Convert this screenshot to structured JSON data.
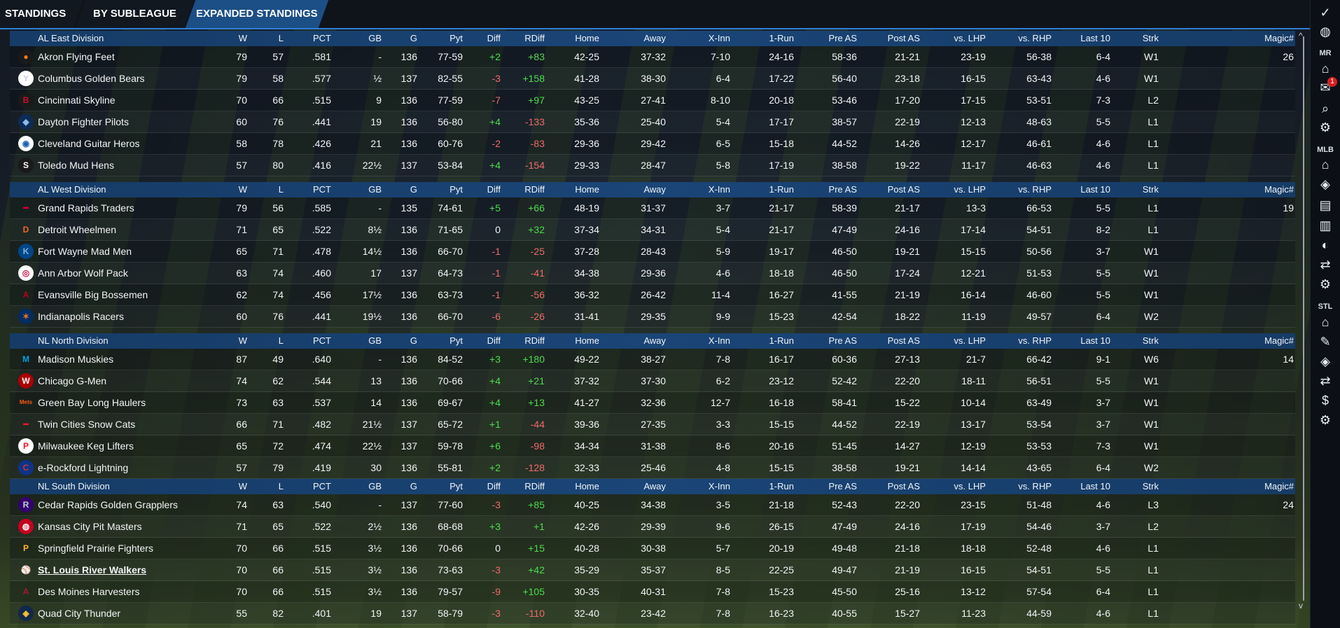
{
  "tabs": [
    {
      "label": "STANDINGS"
    },
    {
      "label": "BY SUBLEAGUE"
    },
    {
      "label": "EXPANDED STANDINGS"
    }
  ],
  "columns": [
    "W",
    "L",
    "PCT",
    "GB",
    "G",
    "Pyt",
    "Diff",
    "RDiff",
    "Home",
    "Away",
    "X-Inn",
    "1-Run",
    "Pre AS",
    "Post AS",
    "vs. LHP",
    "vs. RHP",
    "Last 10",
    "Strk",
    "Magic#"
  ],
  "divisions": [
    {
      "name": "AL East Division",
      "teams": [
        {
          "team": "Akron  Flying Feet",
          "w": "79",
          "l": "57",
          "pct": ".581",
          "gb": "-",
          "g": "136",
          "pyt": "77-59",
          "diff": "+2",
          "rdiff": "+83",
          "home": "42-25",
          "away": "37-32",
          "xinn": "7-10",
          "onerun": "24-16",
          "preas": "58-36",
          "postas": "21-21",
          "vlhp": "23-19",
          "vrhp": "56-38",
          "last10": "6-4",
          "strk": "W1",
          "magic": "26"
        },
        {
          "team": "Columbus Golden Bears",
          "w": "79",
          "l": "58",
          "pct": ".577",
          "gb": "½",
          "g": "137",
          "pyt": "82-55",
          "diff": "-3",
          "rdiff": "+158",
          "home": "41-28",
          "away": "38-30",
          "xinn": "6-4",
          "onerun": "17-22",
          "preas": "56-40",
          "postas": "23-18",
          "vlhp": "16-15",
          "vrhp": "63-43",
          "last10": "4-6",
          "strk": "W1",
          "magic": ""
        },
        {
          "team": "Cincinnati Skyline",
          "w": "70",
          "l": "66",
          "pct": ".515",
          "gb": "9",
          "g": "136",
          "pyt": "77-59",
          "diff": "-7",
          "rdiff": "+97",
          "home": "43-25",
          "away": "27-41",
          "xinn": "8-10",
          "onerun": "20-18",
          "preas": "53-46",
          "postas": "17-20",
          "vlhp": "17-15",
          "vrhp": "53-51",
          "last10": "7-3",
          "strk": "L2",
          "magic": ""
        },
        {
          "team": "Dayton Fighter Pilots",
          "w": "60",
          "l": "76",
          "pct": ".441",
          "gb": "19",
          "g": "136",
          "pyt": "56-80",
          "diff": "+4",
          "rdiff": "-133",
          "home": "35-36",
          "away": "25-40",
          "xinn": "5-4",
          "onerun": "17-17",
          "preas": "38-57",
          "postas": "22-19",
          "vlhp": "12-13",
          "vrhp": "48-63",
          "last10": "5-5",
          "strk": "L1",
          "magic": ""
        },
        {
          "team": "Cleveland Guitar Heros",
          "w": "58",
          "l": "78",
          "pct": ".426",
          "gb": "21",
          "g": "136",
          "pyt": "60-76",
          "diff": "-2",
          "rdiff": "-83",
          "home": "29-36",
          "away": "29-42",
          "xinn": "6-5",
          "onerun": "15-18",
          "preas": "44-52",
          "postas": "14-26",
          "vlhp": "12-17",
          "vrhp": "46-61",
          "last10": "4-6",
          "strk": "L1",
          "magic": ""
        },
        {
          "team": "Toledo  Mud Hens",
          "w": "57",
          "l": "80",
          "pct": ".416",
          "gb": "22½",
          "g": "137",
          "pyt": "53-84",
          "diff": "+4",
          "rdiff": "-154",
          "home": "29-33",
          "away": "28-47",
          "xinn": "5-8",
          "onerun": "17-19",
          "preas": "38-58",
          "postas": "19-22",
          "vlhp": "11-17",
          "vrhp": "46-63",
          "last10": "4-6",
          "strk": "L1",
          "magic": ""
        }
      ]
    },
    {
      "name": "AL West Division",
      "teams": [
        {
          "team": "Grand Rapids Traders",
          "w": "79",
          "l": "56",
          "pct": ".585",
          "gb": "-",
          "g": "135",
          "pyt": "74-61",
          "diff": "+5",
          "rdiff": "+66",
          "home": "48-19",
          "away": "31-37",
          "xinn": "3-7",
          "onerun": "21-17",
          "preas": "58-39",
          "postas": "21-17",
          "vlhp": "13-3",
          "vrhp": "66-53",
          "last10": "5-5",
          "strk": "L1",
          "magic": "19"
        },
        {
          "team": "Detroit Wheelmen",
          "w": "71",
          "l": "65",
          "pct": ".522",
          "gb": "8½",
          "g": "136",
          "pyt": "71-65",
          "diff": "0",
          "rdiff": "+32",
          "home": "37-34",
          "away": "34-31",
          "xinn": "5-4",
          "onerun": "21-17",
          "preas": "47-49",
          "postas": "24-16",
          "vlhp": "17-14",
          "vrhp": "54-51",
          "last10": "8-2",
          "strk": "L1",
          "magic": ""
        },
        {
          "team": "Fort Wayne Mad Men",
          "w": "65",
          "l": "71",
          "pct": ".478",
          "gb": "14½",
          "g": "136",
          "pyt": "66-70",
          "diff": "-1",
          "rdiff": "-25",
          "home": "37-28",
          "away": "28-43",
          "xinn": "5-9",
          "onerun": "19-17",
          "preas": "46-50",
          "postas": "19-21",
          "vlhp": "15-15",
          "vrhp": "50-56",
          "last10": "3-7",
          "strk": "W1",
          "magic": ""
        },
        {
          "team": "Ann Arbor Wolf Pack",
          "w": "63",
          "l": "74",
          "pct": ".460",
          "gb": "17",
          "g": "137",
          "pyt": "64-73",
          "diff": "-1",
          "rdiff": "-41",
          "home": "34-38",
          "away": "29-36",
          "xinn": "4-6",
          "onerun": "18-18",
          "preas": "46-50",
          "postas": "17-24",
          "vlhp": "12-21",
          "vrhp": "51-53",
          "last10": "5-5",
          "strk": "W1",
          "magic": ""
        },
        {
          "team": "Evansville Big Bossemen",
          "w": "62",
          "l": "74",
          "pct": ".456",
          "gb": "17½",
          "g": "136",
          "pyt": "63-73",
          "diff": "-1",
          "rdiff": "-56",
          "home": "36-32",
          "away": "26-42",
          "xinn": "11-4",
          "onerun": "16-27",
          "preas": "41-55",
          "postas": "21-19",
          "vlhp": "16-14",
          "vrhp": "46-60",
          "last10": "5-5",
          "strk": "W1",
          "magic": ""
        },
        {
          "team": "Indianapolis Racers",
          "w": "60",
          "l": "76",
          "pct": ".441",
          "gb": "19½",
          "g": "136",
          "pyt": "66-70",
          "diff": "-6",
          "rdiff": "-26",
          "home": "31-41",
          "away": "29-35",
          "xinn": "9-9",
          "onerun": "15-23",
          "preas": "42-54",
          "postas": "18-22",
          "vlhp": "11-19",
          "vrhp": "49-57",
          "last10": "6-4",
          "strk": "W2",
          "magic": ""
        }
      ]
    },
    {
      "name": "NL North Division",
      "teams": [
        {
          "team": "Madison Muskies",
          "w": "87",
          "l": "49",
          "pct": ".640",
          "gb": "-",
          "g": "136",
          "pyt": "84-52",
          "diff": "+3",
          "rdiff": "+180",
          "home": "49-22",
          "away": "38-27",
          "xinn": "7-8",
          "onerun": "16-17",
          "preas": "60-36",
          "postas": "27-13",
          "vlhp": "21-7",
          "vrhp": "66-42",
          "last10": "9-1",
          "strk": "W6",
          "magic": "14"
        },
        {
          "team": "Chicago G-Men",
          "w": "74",
          "l": "62",
          "pct": ".544",
          "gb": "13",
          "g": "136",
          "pyt": "70-66",
          "diff": "+4",
          "rdiff": "+21",
          "home": "37-32",
          "away": "37-30",
          "xinn": "6-2",
          "onerun": "23-12",
          "preas": "52-42",
          "postas": "22-20",
          "vlhp": "18-11",
          "vrhp": "56-51",
          "last10": "5-5",
          "strk": "W1",
          "magic": ""
        },
        {
          "team": "Green Bay  Long Haulers",
          "w": "73",
          "l": "63",
          "pct": ".537",
          "gb": "14",
          "g": "136",
          "pyt": "69-67",
          "diff": "+4",
          "rdiff": "+13",
          "home": "41-27",
          "away": "32-36",
          "xinn": "12-7",
          "onerun": "16-18",
          "preas": "58-41",
          "postas": "15-22",
          "vlhp": "10-14",
          "vrhp": "63-49",
          "last10": "3-7",
          "strk": "W1",
          "magic": ""
        },
        {
          "team": "Twin Cities Snow Cats",
          "w": "66",
          "l": "71",
          "pct": ".482",
          "gb": "21½",
          "g": "137",
          "pyt": "65-72",
          "diff": "+1",
          "rdiff": "-44",
          "home": "39-36",
          "away": "27-35",
          "xinn": "3-3",
          "onerun": "15-15",
          "preas": "44-52",
          "postas": "22-19",
          "vlhp": "13-17",
          "vrhp": "53-54",
          "last10": "3-7",
          "strk": "W1",
          "magic": ""
        },
        {
          "team": "Milwaukee Keg Lifters",
          "w": "65",
          "l": "72",
          "pct": ".474",
          "gb": "22½",
          "g": "137",
          "pyt": "59-78",
          "diff": "+6",
          "rdiff": "-98",
          "home": "34-34",
          "away": "31-38",
          "xinn": "8-6",
          "onerun": "20-16",
          "preas": "51-45",
          "postas": "14-27",
          "vlhp": "12-19",
          "vrhp": "53-53",
          "last10": "7-3",
          "strk": "W1",
          "magic": ""
        },
        {
          "team": "e-Rockford Lightning",
          "w": "57",
          "l": "79",
          "pct": ".419",
          "gb": "30",
          "g": "136",
          "pyt": "55-81",
          "diff": "+2",
          "rdiff": "-128",
          "home": "32-33",
          "away": "25-46",
          "xinn": "4-8",
          "onerun": "15-15",
          "preas": "38-58",
          "postas": "19-21",
          "vlhp": "14-14",
          "vrhp": "43-65",
          "last10": "6-4",
          "strk": "W2",
          "magic": ""
        }
      ]
    },
    {
      "name": "NL South Division",
      "teams": [
        {
          "team": "Cedar Rapids Golden Grapplers",
          "w": "74",
          "l": "63",
          "pct": ".540",
          "gb": "-",
          "g": "137",
          "pyt": "77-60",
          "diff": "-3",
          "rdiff": "+85",
          "home": "40-25",
          "away": "34-38",
          "xinn": "3-5",
          "onerun": "21-18",
          "preas": "52-43",
          "postas": "22-20",
          "vlhp": "23-15",
          "vrhp": "51-48",
          "last10": "4-6",
          "strk": "L3",
          "magic": "24"
        },
        {
          "team": "Kansas City Pit Masters",
          "w": "71",
          "l": "65",
          "pct": ".522",
          "gb": "2½",
          "g": "136",
          "pyt": "68-68",
          "diff": "+3",
          "rdiff": "+1",
          "home": "42-26",
          "away": "29-39",
          "xinn": "9-6",
          "onerun": "26-15",
          "preas": "47-49",
          "postas": "24-16",
          "vlhp": "17-19",
          "vrhp": "54-46",
          "last10": "3-7",
          "strk": "L2",
          "magic": ""
        },
        {
          "team": "Springfield Prairie Fighters",
          "w": "70",
          "l": "66",
          "pct": ".515",
          "gb": "3½",
          "g": "136",
          "pyt": "70-66",
          "diff": "0",
          "rdiff": "+15",
          "home": "40-28",
          "away": "30-38",
          "xinn": "5-7",
          "onerun": "20-19",
          "preas": "49-48",
          "postas": "21-18",
          "vlhp": "18-18",
          "vrhp": "52-48",
          "last10": "4-6",
          "strk": "L1",
          "magic": ""
        },
        {
          "team": "St. Louis River Walkers",
          "w": "70",
          "l": "66",
          "pct": ".515",
          "gb": "3½",
          "g": "136",
          "pyt": "73-63",
          "diff": "-3",
          "rdiff": "+42",
          "home": "35-29",
          "away": "35-37",
          "xinn": "8-5",
          "onerun": "22-25",
          "preas": "49-47",
          "postas": "21-19",
          "vlhp": "16-15",
          "vrhp": "54-51",
          "last10": "5-5",
          "strk": "L1",
          "magic": "",
          "link": true
        },
        {
          "team": "Des Moines   Harvesters",
          "w": "70",
          "l": "66",
          "pct": ".515",
          "gb": "3½",
          "g": "136",
          "pyt": "79-57",
          "diff": "-9",
          "rdiff": "+105",
          "home": "30-35",
          "away": "40-31",
          "xinn": "7-8",
          "onerun": "15-23",
          "preas": "45-50",
          "postas": "25-16",
          "vlhp": "13-12",
          "vrhp": "57-54",
          "last10": "6-4",
          "strk": "L1",
          "magic": ""
        },
        {
          "team": "Quad City Thunder",
          "w": "55",
          "l": "82",
          "pct": ".401",
          "gb": "19",
          "g": "137",
          "pyt": "58-79",
          "diff": "-3",
          "rdiff": "-110",
          "home": "32-40",
          "away": "23-42",
          "xinn": "7-8",
          "onerun": "16-23",
          "preas": "40-55",
          "postas": "15-27",
          "vlhp": "11-23",
          "vrhp": "44-59",
          "last10": "4-6",
          "strk": "L1",
          "magic": ""
        }
      ]
    }
  ],
  "logos": [
    [
      {
        "icon": "oriole-bird-icon",
        "glyph": "●",
        "color": "#f07a20",
        "bg": "#1a1a1a"
      },
      {
        "icon": "ny-logo-icon",
        "glyph": "Y",
        "color": "#c8d0e0",
        "bg": "#ffffff"
      },
      {
        "icon": "boston-b-icon",
        "glyph": "B",
        "color": "#c8102e",
        "bg": "#1a1a1a"
      },
      {
        "icon": "ray-logo-icon",
        "glyph": "◆",
        "color": "#8fbce6",
        "bg": "#0c2c56"
      },
      {
        "icon": "jay-logo-icon",
        "glyph": "◉",
        "color": "#1d5fae",
        "bg": "#ffffff"
      },
      {
        "icon": "sox-logo-icon",
        "glyph": "S",
        "color": "#ffffff",
        "bg": "#1a1a1a"
      }
    ],
    [
      {
        "icon": "cleveland-logo-icon",
        "glyph": "━",
        "color": "#d50032",
        "bg": "transparent"
      },
      {
        "icon": "detroit-d-icon",
        "glyph": "D",
        "color": "#f26722",
        "bg": "transparent"
      },
      {
        "icon": "kc-crown-icon",
        "glyph": "K",
        "color": "#7ab2dd",
        "bg": "#004687"
      },
      {
        "icon": "twins-logo-icon",
        "glyph": "◎",
        "color": "#d31145",
        "bg": "#ffffff"
      },
      {
        "icon": "angels-a-icon",
        "glyph": "A",
        "color": "#ba0021",
        "bg": "transparent"
      },
      {
        "icon": "astros-star-icon",
        "glyph": "✶",
        "color": "#eb6e1f",
        "bg": "#002d62"
      }
    ],
    [
      {
        "icon": "marlin-logo-icon",
        "glyph": "M",
        "color": "#00a3e0",
        "bg": "transparent"
      },
      {
        "icon": "nationals-w-icon",
        "glyph": "W",
        "color": "#ffffff",
        "bg": "#ab0003"
      },
      {
        "icon": "mets-logo-icon",
        "glyph": "Mets",
        "color": "#ff5910",
        "bg": "transparent"
      },
      {
        "icon": "phillies-logo-icon",
        "glyph": "━",
        "color": "#e81828",
        "bg": "transparent"
      },
      {
        "icon": "phillies-p-icon",
        "glyph": "P",
        "color": "#e81828",
        "bg": "#ffffff"
      },
      {
        "icon": "cubs-c-icon",
        "glyph": "C",
        "color": "#cc3433",
        "bg": "#0e3386"
      }
    ],
    [
      {
        "icon": "rockies-logo-icon",
        "glyph": "R",
        "color": "#c4ced4",
        "bg": "#33006f"
      },
      {
        "icon": "reds-logo-icon",
        "glyph": "◍",
        "color": "#ffffff",
        "bg": "#c6011f"
      },
      {
        "icon": "pirates-p-icon",
        "glyph": "P",
        "color": "#fdb827",
        "bg": "transparent"
      },
      {
        "icon": "cardinals-logo-icon",
        "glyph": "⚾",
        "color": "#c41e3a",
        "bg": "transparent"
      },
      {
        "icon": "dbacks-a-icon",
        "glyph": "A",
        "color": "#a71930",
        "bg": "transparent"
      },
      {
        "icon": "brewers-logo-icon",
        "glyph": "◈",
        "color": "#ffc52f",
        "bg": "#12284b"
      }
    ]
  ],
  "rail": {
    "mr": "MR",
    "mlb": "MLB",
    "stl": "STL",
    "badge": "1",
    "icons": [
      "check-icon",
      "globe-icon",
      "home-icon",
      "mail-icon",
      "search-icon",
      "gear-icon",
      "home-icon",
      "diamond-icon",
      "id-card-icon",
      "bar-chart-icon",
      "baseball-icon",
      "trade-arrows-icon",
      "gear-icon",
      "home-icon",
      "clipboard-icon",
      "diamond-icon",
      "trade-arrows-icon",
      "dollar-icon",
      "gear-icon"
    ]
  },
  "scroll": {
    "up": "^",
    "down": "v"
  }
}
